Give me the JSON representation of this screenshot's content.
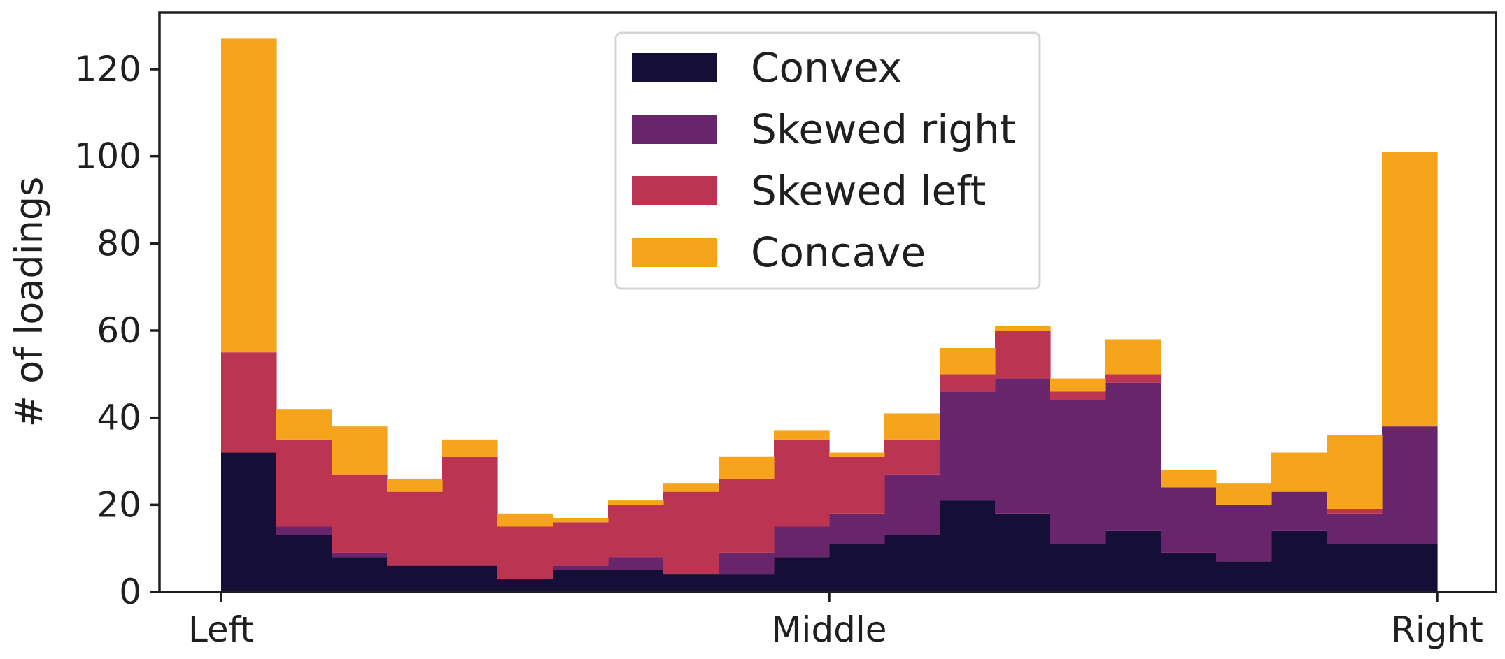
{
  "chart_data": {
    "type": "bar",
    "stacked": true,
    "ylabel": "# of loadings",
    "xlabel": "",
    "ylim": [
      0,
      133
    ],
    "yticks": [
      0,
      20,
      40,
      60,
      80,
      100,
      120
    ],
    "xticks": [
      {
        "label": "Left",
        "bin": 0
      },
      {
        "label": "Middle",
        "bin": 11
      },
      {
        "label": "Right",
        "bin": 22
      }
    ],
    "bins": 22,
    "legend_position": "top-center",
    "grid": false,
    "series": [
      {
        "name": "Convex",
        "color": "#150e37",
        "values": [
          32,
          13,
          8,
          6,
          6,
          3,
          5,
          5,
          4,
          4,
          8,
          11,
          13,
          21,
          18,
          11,
          14,
          9,
          7,
          14,
          11,
          11
        ]
      },
      {
        "name": "Skewed right",
        "color": "#69256b",
        "values": [
          0,
          2,
          1,
          0,
          0,
          0,
          1,
          3,
          0,
          5,
          7,
          7,
          14,
          25,
          31,
          33,
          34,
          15,
          13,
          9,
          7,
          27
        ]
      },
      {
        "name": "Skewed left",
        "color": "#bb3553",
        "values": [
          23,
          20,
          18,
          17,
          25,
          12,
          10,
          12,
          19,
          17,
          20,
          13,
          8,
          4,
          11,
          2,
          2,
          0,
          0,
          0,
          1,
          0
        ]
      },
      {
        "name": "Concave",
        "color": "#f6a41c",
        "values": [
          72,
          7,
          11,
          3,
          4,
          3,
          1,
          1,
          2,
          5,
          2,
          1,
          6,
          6,
          1,
          3,
          8,
          4,
          5,
          9,
          17,
          63
        ]
      }
    ]
  }
}
